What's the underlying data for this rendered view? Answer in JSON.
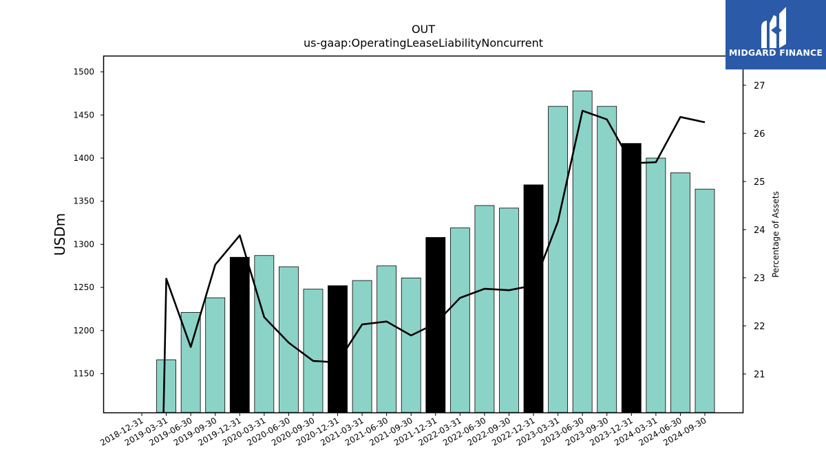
{
  "chart_data": {
    "type": "bar",
    "title": "OUT",
    "subtitle": "us-gaap:OperatingLeaseLiabilityNoncurrent",
    "ylabel": "USDm",
    "y2label": "Percentage of Assets",
    "ylim": [
      1105,
      1518
    ],
    "y2lim": [
      20.2,
      27.6
    ],
    "yticks": [
      1150,
      1200,
      1250,
      1300,
      1350,
      1400,
      1450,
      1500
    ],
    "y2ticks": [
      21,
      22,
      23,
      24,
      25,
      26,
      27
    ],
    "categories": [
      "2018-12-31",
      "2019-03-31",
      "2019-06-30",
      "2019-09-30",
      "2019-12-31",
      "2020-03-31",
      "2020-06-30",
      "2020-09-30",
      "2020-12-31",
      "2021-03-31",
      "2021-06-30",
      "2021-09-30",
      "2021-12-31",
      "2022-03-31",
      "2022-06-30",
      "2022-09-30",
      "2022-12-31",
      "2023-03-31",
      "2023-06-30",
      "2023-09-30",
      "2023-12-31",
      "2024-03-31",
      "2024-06-30",
      "2024-09-30"
    ],
    "series": [
      {
        "kind": "bar",
        "values": [
          null,
          1166,
          1221,
          1238,
          1285,
          1287,
          1274,
          1248,
          1252,
          1258,
          1275,
          1261,
          1308,
          1319,
          1345,
          1342,
          1369,
          1460,
          1478,
          1460,
          1417,
          1400,
          1383,
          1364
        ],
        "year_end_color": "#000000",
        "color": "#8cd3c7"
      },
      {
        "kind": "line",
        "axis": "right",
        "color": "#000000",
        "values": [
          null,
          22.98,
          21.56,
          23.27,
          23.88,
          22.18,
          21.65,
          21.27,
          21.24,
          22.03,
          22.09,
          21.8,
          22.05,
          22.58,
          22.77,
          22.74,
          22.84,
          24.17,
          26.47,
          26.29,
          25.38,
          25.4,
          26.34,
          26.23
        ]
      }
    ],
    "grid": false,
    "legend": "none"
  },
  "logo": {
    "text": "MIDGARD FINANCE",
    "bg_color": "#2a5aa8"
  }
}
